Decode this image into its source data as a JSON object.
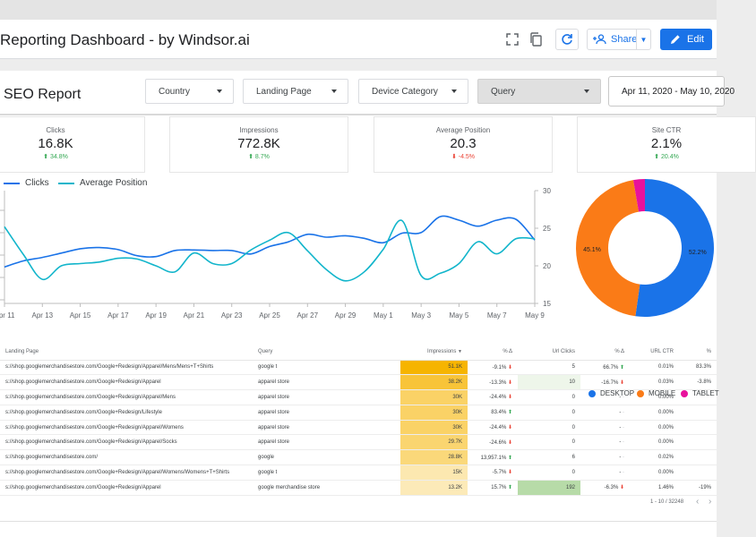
{
  "app": {
    "title": "Reporting Dashboard - by Windsor.ai"
  },
  "toolbar": {
    "share_label": "Share",
    "edit_label": "Edit"
  },
  "report": {
    "title": "SEO Report"
  },
  "filters": {
    "country": "Country",
    "landing_page": "Landing Page",
    "device_category": "Device Category",
    "query": "Query",
    "date_range": "Apr 11, 2020 - May 10, 2020"
  },
  "kpis": [
    {
      "label": "Clicks",
      "value": "16.8K",
      "delta": "34.8%",
      "direction": "up"
    },
    {
      "label": "Impressions",
      "value": "772.8K",
      "delta": "8.7%",
      "direction": "up"
    },
    {
      "label": "Average Position",
      "value": "20.3",
      "delta": "-4.5%",
      "direction": "down"
    },
    {
      "label": "Site CTR",
      "value": "2.1%",
      "delta": "20.4%",
      "direction": "up"
    }
  ],
  "chart_data": [
    {
      "type": "line",
      "x": [
        "Apr 11",
        "Apr 12",
        "Apr 13",
        "Apr 14",
        "Apr 15",
        "Apr 16",
        "Apr 17",
        "Apr 18",
        "Apr 19",
        "Apr 20",
        "Apr 21",
        "Apr 22",
        "Apr 23",
        "Apr 24",
        "Apr 25",
        "Apr 26",
        "Apr 27",
        "Apr 28",
        "Apr 29",
        "Apr 30",
        "May 1",
        "May 2",
        "May 3",
        "May 4",
        "May 5",
        "May 6",
        "May 7",
        "May 8",
        "May 9"
      ],
      "xticks": [
        "Apr 11",
        "Apr 13",
        "Apr 15",
        "Apr 17",
        "Apr 19",
        "Apr 21",
        "Apr 23",
        "Apr 25",
        "Apr 27",
        "Apr 29",
        "May 1",
        "May 3",
        "May 5",
        "May 7",
        "May 9"
      ],
      "series": [
        {
          "name": "Clicks",
          "axis": "left",
          "color": "#1a73e8",
          "values": [
            510,
            545,
            565,
            590,
            615,
            622,
            610,
            575,
            570,
            605,
            608,
            605,
            605,
            585,
            628,
            655,
            698,
            682,
            690,
            675,
            650,
            705,
            708,
            800,
            780,
            745,
            780,
            785,
            665
          ]
        },
        {
          "name": "Average Position",
          "axis": "right",
          "color": "#12b5cb",
          "values": [
            25.2,
            21.5,
            18.2,
            20.0,
            20.3,
            20.5,
            21.0,
            20.9,
            20.0,
            19.2,
            21.7,
            20.3,
            20.3,
            22.1,
            23.4,
            24.4,
            22.0,
            19.5,
            18.0,
            19.2,
            22.2,
            26.0,
            18.7,
            19.0,
            20.3,
            23.2,
            21.6,
            23.6,
            23.6
          ]
        }
      ],
      "y_right": {
        "ticks": [
          15,
          20,
          25,
          30
        ],
        "range": [
          15,
          30
        ]
      },
      "y_left": {
        "range": [
          300,
          950
        ]
      },
      "legend": "top-left",
      "grid": false
    },
    {
      "type": "pie",
      "style": "donut",
      "slices": [
        {
          "name": "DESKTOP",
          "value": 52.2,
          "label": "52.2%",
          "color": "#1a73e8"
        },
        {
          "name": "MOBILE",
          "value": 45.1,
          "label": "45.1%",
          "color": "#fa7b17"
        },
        {
          "name": "TABLET",
          "value": 2.7,
          "label": "",
          "color": "#e8119c"
        }
      ],
      "legend": "bottom"
    }
  ],
  "table": {
    "headers": {
      "landing_page": "Landing Page",
      "query": "Query",
      "impressions": "Impressions",
      "imp_delta": "% Δ",
      "url_clicks": "Url Clicks",
      "clicks_delta": "% Δ",
      "url_ctr": "URL CTR",
      "ctr_delta": "%"
    },
    "sort_indicator": "▼",
    "rows": [
      {
        "landing_page": "s://shop.googlemerchandisestore.com/Google+Redesign/Apparel/Mens/Mens+T+Shirts",
        "query": "google t",
        "impressions": "51.1K",
        "imp_delta": "-9.1%",
        "imp_dir": "down",
        "url_clicks": "5",
        "clicks_delta": "66.7%",
        "clicks_dir": "up",
        "url_ctr": "0.01%",
        "ctr_delta": "83.3%",
        "imp_shade": 1.0,
        "click_shade": 0
      },
      {
        "landing_page": "s://shop.googlemerchandisestore.com/Google+Redesign/Apparel",
        "query": "apparel store",
        "impressions": "38.2K",
        "imp_delta": "-13.3%",
        "imp_dir": "down",
        "url_clicks": "10",
        "clicks_delta": "-16.7%",
        "clicks_dir": "down",
        "url_ctr": "0.03%",
        "ctr_delta": "-3.8%",
        "imp_shade": 0.75,
        "click_shade": 0.05
      },
      {
        "landing_page": "s://shop.googlemerchandisestore.com/Google+Redesign/Apparel/Mens",
        "query": "apparel store",
        "impressions": "30K",
        "imp_delta": "-24.4%",
        "imp_dir": "down",
        "url_clicks": "0",
        "clicks_delta": "-",
        "clicks_dir": "",
        "url_ctr": "0.00%",
        "ctr_delta": "",
        "imp_shade": 0.55,
        "click_shade": 0
      },
      {
        "landing_page": "s://shop.googlemerchandisestore.com/Google+Redesign/Lifestyle",
        "query": "apparel store",
        "impressions": "30K",
        "imp_delta": "83.4%",
        "imp_dir": "up",
        "url_clicks": "0",
        "clicks_delta": "-",
        "clicks_dir": "",
        "url_ctr": "0.00%",
        "ctr_delta": "",
        "imp_shade": 0.55,
        "click_shade": 0
      },
      {
        "landing_page": "s://shop.googlemerchandisestore.com/Google+Redesign/Apparel/Womens",
        "query": "apparel store",
        "impressions": "30K",
        "imp_delta": "-24.4%",
        "imp_dir": "down",
        "url_clicks": "0",
        "clicks_delta": "-",
        "clicks_dir": "",
        "url_ctr": "0.00%",
        "ctr_delta": "",
        "imp_shade": 0.55,
        "click_shade": 0
      },
      {
        "landing_page": "s://shop.googlemerchandisestore.com/Google+Redesign/Apparel/Socks",
        "query": "apparel store",
        "impressions": "29.7K",
        "imp_delta": "-24.6%",
        "imp_dir": "down",
        "url_clicks": "0",
        "clicks_delta": "-",
        "clicks_dir": "",
        "url_ctr": "0.00%",
        "ctr_delta": "",
        "imp_shade": 0.5,
        "click_shade": 0
      },
      {
        "landing_page": "s://shop.googlemerchandisestore.com/",
        "query": "google",
        "impressions": "28.8K",
        "imp_delta": "13,957.1%",
        "imp_dir": "up",
        "url_clicks": "6",
        "clicks_delta": "-",
        "clicks_dir": "",
        "url_ctr": "0.02%",
        "ctr_delta": "",
        "imp_shade": 0.45,
        "click_shade": 0
      },
      {
        "landing_page": "s://shop.googlemerchandisestore.com/Google+Redesign/Apparel/Womens/Womens+T+Shirts",
        "query": "google t",
        "impressions": "15K",
        "imp_delta": "-5.7%",
        "imp_dir": "down",
        "url_clicks": "0",
        "clicks_delta": "-",
        "clicks_dir": "",
        "url_ctr": "0.00%",
        "ctr_delta": "",
        "imp_shade": 0.22,
        "click_shade": 0
      },
      {
        "landing_page": "s://shop.googlemerchandisestore.com/Google+Redesign/Apparel",
        "query": "google merchandise store",
        "impressions": "13.2K",
        "imp_delta": "15.7%",
        "imp_dir": "up",
        "url_clicks": "192",
        "clicks_delta": "-6.3%",
        "clicks_dir": "down",
        "url_ctr": "1.46%",
        "ctr_delta": "-19%",
        "imp_shade": 0.18,
        "click_shade": 1.0
      }
    ],
    "pagination": "1 - 10 / 32248"
  },
  "colors": {
    "accent": "#1a73e8",
    "heat_impressions": "#f6b400",
    "heat_clicks": "#b7dba8",
    "up": "#34a853",
    "down": "#ea4335"
  }
}
